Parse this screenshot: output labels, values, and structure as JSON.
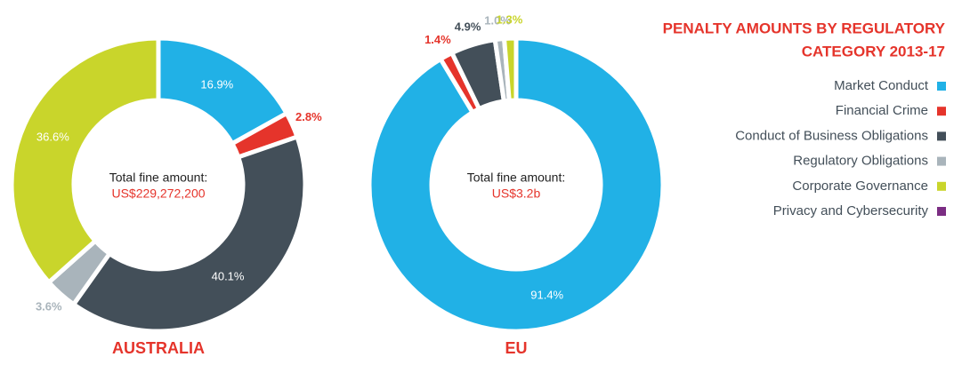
{
  "title": "PENALTY AMOUNTS BY REGULATORY CATEGORY 2013-17",
  "categories": [
    "Market Conduct",
    "Financial Crime",
    "Conduct of Business Obligations",
    "Regulatory Obligations",
    "Corporate Governance",
    "Privacy and Cybersecurity"
  ],
  "colors": [
    "#21b1e6",
    "#e5342b",
    "#434f59",
    "#a9b4bb",
    "#c9d52b",
    "#7b2d83"
  ],
  "chart_data": [
    {
      "type": "pie",
      "label": "AUSTRALIA",
      "center_text": "Total fine amount:",
      "total": "US$229,272,200",
      "values": [
        16.9,
        2.8,
        40.1,
        3.6,
        36.6,
        null
      ],
      "value_labels": [
        "16.9%",
        "2.8%",
        "40.1%",
        "3.6%",
        "36.6%",
        null
      ]
    },
    {
      "type": "pie",
      "label": "EU",
      "center_text": "Total fine amount:",
      "total": "US$3.2b",
      "values": [
        91.4,
        1.4,
        4.9,
        1.0,
        1.3,
        null
      ],
      "value_labels": [
        "91.4%",
        "1.4%",
        "4.9%",
        "1.0%",
        "1.3%",
        null
      ]
    }
  ]
}
